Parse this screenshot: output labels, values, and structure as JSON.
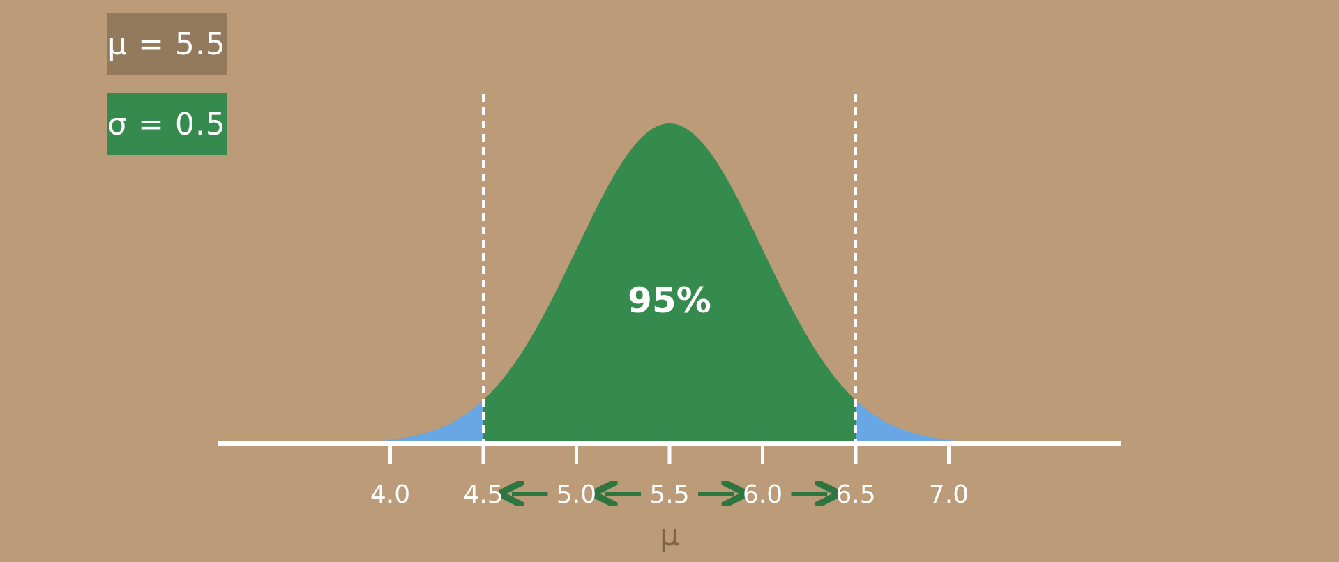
{
  "params": {
    "mu_label": "μ = 5.5",
    "sigma_label": "σ = 0.5"
  },
  "colors": {
    "background": "#bc9b79",
    "mu_box": "#937a5d",
    "sigma_box": "#358a4d",
    "central_region": "#358a4d",
    "tails": "#68a6e4",
    "arrows": "#2e7640",
    "axis": "#ffffff",
    "axis_label": "#7c6449"
  },
  "chart_data": {
    "type": "area",
    "distribution": "normal",
    "mu": 5.5,
    "sigma": 0.5,
    "xlim": [
      3.15,
      7.95
    ],
    "ticks": [
      4.0,
      4.5,
      5.0,
      5.5,
      6.0,
      6.5,
      7.0
    ],
    "tick_labels": [
      "4.0",
      "4.5",
      "5.0",
      "5.5",
      "6.0",
      "6.5",
      "7.0"
    ],
    "interval": [
      4.5,
      6.5
    ],
    "interval_label": "95%",
    "xlabel": "μ",
    "arrows": [
      {
        "from": 5.0,
        "to": 4.5,
        "direction": "left"
      },
      {
        "from": 5.5,
        "to": 5.0,
        "direction": "left"
      },
      {
        "from": 5.5,
        "to": 6.0,
        "direction": "right"
      },
      {
        "from": 6.0,
        "to": 6.5,
        "direction": "right"
      }
    ]
  }
}
